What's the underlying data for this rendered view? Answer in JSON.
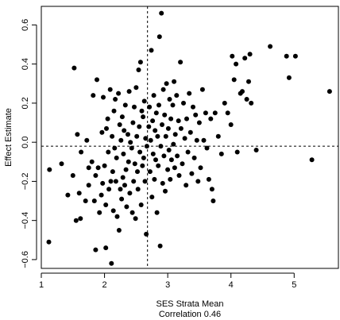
{
  "chart_data": {
    "type": "scatter",
    "title": "",
    "xlabel": "SES Strata Mean",
    "xlabel_line2": "Correlation 0.46",
    "ylabel": "Effect Estimate",
    "xlim": [
      1.0,
      5.7
    ],
    "ylim": [
      -0.645,
      0.695
    ],
    "x_ticks": [
      1,
      2,
      3,
      4,
      5
    ],
    "y_ticks": [
      -0.6,
      -0.4,
      -0.2,
      0.0,
      0.2,
      0.4,
      0.6
    ],
    "y_tick_labels": [
      "−0.6",
      "−0.4",
      "−0.2",
      "0.0",
      "0.2",
      "0.4",
      "0.6"
    ],
    "reference_lines": {
      "vertical_x": 2.68,
      "horizontal_y": -0.02,
      "style": "dashed"
    },
    "grid": false,
    "legend": "none",
    "marker_color": "#000000",
    "points": [
      [
        1.12,
        -0.51
      ],
      [
        1.13,
        -0.14
      ],
      [
        1.32,
        -0.11
      ],
      [
        1.42,
        -0.27
      ],
      [
        1.5,
        -0.17
      ],
      [
        1.52,
        0.38
      ],
      [
        1.55,
        -0.4
      ],
      [
        1.6,
        -0.26
      ],
      [
        1.57,
        0.04
      ],
      [
        1.62,
        -0.39
      ],
      [
        1.63,
        -0.05
      ],
      [
        1.7,
        -0.3
      ],
      [
        1.72,
        0.01
      ],
      [
        1.75,
        -0.13
      ],
      [
        1.75,
        -0.22
      ],
      [
        1.8,
        -0.1
      ],
      [
        1.82,
        0.24
      ],
      [
        1.84,
        -0.3
      ],
      [
        1.86,
        -0.55
      ],
      [
        1.86,
        -0.17
      ],
      [
        1.88,
        0.32
      ],
      [
        1.9,
        -0.13
      ],
      [
        1.92,
        -0.36
      ],
      [
        1.95,
        -0.27
      ],
      [
        1.96,
        0.05
      ],
      [
        1.97,
        -0.21
      ],
      [
        1.98,
        0.23
      ],
      [
        2.0,
        -0.12
      ],
      [
        2.02,
        -0.54
      ],
      [
        2.02,
        -0.32
      ],
      [
        2.03,
        0.07
      ],
      [
        2.05,
        0.12
      ],
      [
        2.06,
        -0.05
      ],
      [
        2.07,
        -0.24
      ],
      [
        2.09,
        0.27
      ],
      [
        2.1,
        -0.2
      ],
      [
        2.11,
        -0.62
      ],
      [
        2.12,
        0.03
      ],
      [
        2.13,
        -0.15
      ],
      [
        2.14,
        -0.35
      ],
      [
        2.15,
        0.16
      ],
      [
        2.16,
        -0.03
      ],
      [
        2.17,
        0.22
      ],
      [
        2.18,
        -0.2
      ],
      [
        2.19,
        -0.08
      ],
      [
        2.2,
        -0.38
      ],
      [
        2.22,
        0.25
      ],
      [
        2.23,
        -0.45
      ],
      [
        2.24,
        0.09
      ],
      [
        2.25,
        -0.24
      ],
      [
        2.26,
        0.01
      ],
      [
        2.27,
        -0.29
      ],
      [
        2.28,
        0.13
      ],
      [
        2.29,
        -0.18
      ],
      [
        2.3,
        -0.06
      ],
      [
        2.31,
        0.06
      ],
      [
        2.32,
        -0.22
      ],
      [
        2.33,
        0.19
      ],
      [
        2.34,
        -0.14
      ],
      [
        2.35,
        -0.33
      ],
      [
        2.37,
        0.04
      ],
      [
        2.38,
        -0.1
      ],
      [
        2.39,
        0.26
      ],
      [
        2.4,
        -0.26
      ],
      [
        2.41,
        0.0
      ],
      [
        2.43,
        -0.03
      ],
      [
        2.44,
        -0.36
      ],
      [
        2.45,
        0.1
      ],
      [
        2.46,
        -0.2
      ],
      [
        2.47,
        0.18
      ],
      [
        2.48,
        -0.11
      ],
      [
        2.49,
        -0.39
      ],
      [
        2.5,
        0.28
      ],
      [
        2.51,
        0.03
      ],
      [
        2.52,
        -0.15
      ],
      [
        2.53,
        -0.24
      ],
      [
        2.54,
        0.37
      ],
      [
        2.55,
        0.08
      ],
      [
        2.56,
        -0.05
      ],
      [
        2.57,
        0.41
      ],
      [
        2.58,
        -0.32
      ],
      [
        2.59,
        0.16
      ],
      [
        2.6,
        -0.12
      ],
      [
        2.61,
        0.13
      ],
      [
        2.62,
        -0.08
      ],
      [
        2.63,
        0.21
      ],
      [
        2.64,
        -0.2
      ],
      [
        2.65,
        0.02
      ],
      [
        2.66,
        -0.47
      ],
      [
        2.67,
        -0.02
      ],
      [
        2.7,
        0.08
      ],
      [
        2.71,
        0.18
      ],
      [
        2.72,
        -0.15
      ],
      [
        2.73,
        0.01
      ],
      [
        2.74,
        0.47
      ],
      [
        2.75,
        -0.28
      ],
      [
        2.76,
        0.11
      ],
      [
        2.77,
        -0.06
      ],
      [
        2.78,
        0.24
      ],
      [
        2.79,
        -0.19
      ],
      [
        2.8,
        0.06
      ],
      [
        2.81,
        -0.09
      ],
      [
        2.82,
        0.15
      ],
      [
        2.83,
        -0.36
      ],
      [
        2.84,
        0.03
      ],
      [
        2.85,
        -0.12
      ],
      [
        2.86,
        0.19
      ],
      [
        2.87,
        0.54
      ],
      [
        2.88,
        -0.53
      ],
      [
        2.89,
        -0.02
      ],
      [
        2.9,
        0.66
      ],
      [
        2.91,
        0.09
      ],
      [
        2.92,
        -0.21
      ],
      [
        2.93,
        0.27
      ],
      [
        2.94,
        -0.07
      ],
      [
        2.95,
        0.14
      ],
      [
        2.96,
        -0.25
      ],
      [
        2.97,
        0.03
      ],
      [
        2.98,
        0.3
      ],
      [
        3.0,
        -0.14
      ],
      [
        3.01,
        0.07
      ],
      [
        3.02,
        -0.04
      ],
      [
        3.03,
        0.22
      ],
      [
        3.04,
        -0.19
      ],
      [
        3.05,
        0.12
      ],
      [
        3.06,
        -0.09
      ],
      [
        3.08,
        0.19
      ],
      [
        3.09,
        -0.01
      ],
      [
        3.1,
        0.31
      ],
      [
        3.11,
        -0.13
      ],
      [
        3.12,
        0.04
      ],
      [
        3.14,
        0.24
      ],
      [
        3.15,
        -0.07
      ],
      [
        3.17,
        0.11
      ],
      [
        3.18,
        -0.17
      ],
      [
        3.2,
        0.41
      ],
      [
        3.21,
        0.07
      ],
      [
        3.23,
        -0.11
      ],
      [
        3.25,
        0.2
      ],
      [
        3.27,
        0.02
      ],
      [
        3.29,
        -0.22
      ],
      [
        3.3,
        0.12
      ],
      [
        3.32,
        -0.05
      ],
      [
        3.34,
        0.25
      ],
      [
        3.36,
        0.05
      ],
      [
        3.38,
        -0.16
      ],
      [
        3.4,
        0.18
      ],
      [
        3.42,
        -0.08
      ],
      [
        3.44,
        0.14
      ],
      [
        3.46,
        0.01
      ],
      [
        3.48,
        -0.2
      ],
      [
        3.5,
        0.1
      ],
      [
        3.52,
        -0.13
      ],
      [
        3.55,
        0.27
      ],
      [
        3.57,
        0.01
      ],
      [
        3.6,
        0.15
      ],
      [
        3.62,
        -0.03
      ],
      [
        3.65,
        -0.19
      ],
      [
        3.68,
        0.12
      ],
      [
        3.7,
        -0.24
      ],
      [
        3.72,
        -0.3
      ],
      [
        3.75,
        0.15
      ],
      [
        3.8,
        0.03
      ],
      [
        3.85,
        -0.06
      ],
      [
        3.9,
        0.2
      ],
      [
        3.95,
        0.15
      ],
      [
        4.0,
        0.09
      ],
      [
        4.02,
        0.44
      ],
      [
        4.05,
        0.32
      ],
      [
        4.08,
        0.4
      ],
      [
        4.1,
        -0.05
      ],
      [
        4.15,
        0.25
      ],
      [
        4.18,
        0.26
      ],
      [
        4.22,
        0.43
      ],
      [
        4.25,
        0.22
      ],
      [
        4.28,
        0.31
      ],
      [
        4.3,
        0.45
      ],
      [
        4.32,
        0.2
      ],
      [
        4.4,
        -0.04
      ],
      [
        4.62,
        0.49
      ],
      [
        4.88,
        0.44
      ],
      [
        4.92,
        0.33
      ],
      [
        5.02,
        0.44
      ],
      [
        5.28,
        -0.09
      ],
      [
        5.56,
        0.26
      ]
    ]
  }
}
